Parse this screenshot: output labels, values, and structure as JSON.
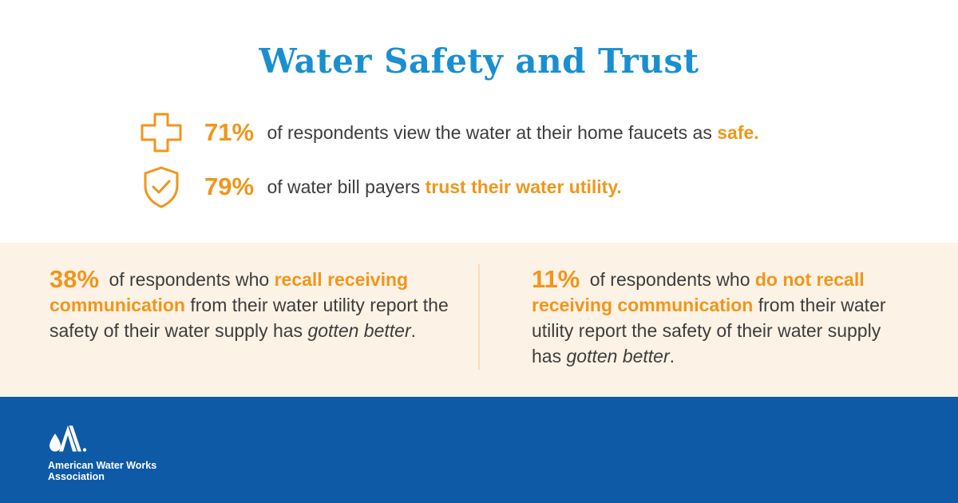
{
  "title": "Water Safety and Trust",
  "stats": [
    {
      "icon": "medical-cross-icon",
      "percent": "71%",
      "text_before": "of respondents view the water at their home faucets as",
      "highlight": "safe."
    },
    {
      "icon": "shield-check-icon",
      "percent": "79%",
      "text_before": "of water bill payers",
      "highlight": "trust their water utility."
    }
  ],
  "findings": {
    "left": {
      "percent": "38%",
      "text_before": "of respondents who",
      "highlight": "recall receiving communication",
      "text_after": "from their water utility report the safety of their water supply has",
      "emphasis": "gotten better",
      "end": "."
    },
    "right": {
      "percent": "11%",
      "text_before": "of respondents who",
      "highlight": "do not recall receiving communication",
      "text_after": "from their water utility report the safety of their water supply has",
      "emphasis": "gotten better",
      "end": "."
    }
  },
  "footer": {
    "logo_icon": "awwa-logo-icon",
    "org_line1": "American Water Works",
    "org_line2": "Association"
  },
  "colors": {
    "title": "#1a8fd0",
    "accent": "#f0961b",
    "band": "#fdf2e6",
    "footer": "#0e5aa7"
  }
}
